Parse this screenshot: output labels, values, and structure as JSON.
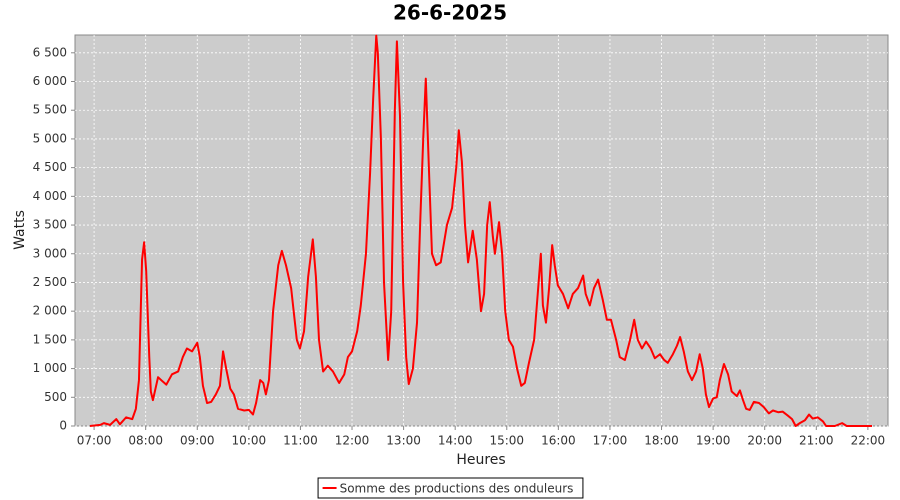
{
  "chart_data": {
    "type": "line",
    "title": "26-6-2025",
    "x_label": "Heures",
    "y_label": "Watts",
    "x": [
      6.92,
      7.12,
      7.19,
      7.31,
      7.43,
      7.5,
      7.62,
      7.74,
      7.81,
      7.87,
      7.93,
      7.97,
      8.01,
      8.07,
      8.1,
      8.14,
      8.24,
      8.3,
      8.4,
      8.51,
      8.63,
      8.72,
      8.8,
      8.9,
      9.0,
      9.05,
      9.11,
      9.19,
      9.27,
      9.36,
      9.44,
      9.5,
      9.56,
      9.64,
      9.71,
      9.79,
      9.91,
      10.0,
      10.08,
      10.14,
      10.22,
      10.28,
      10.33,
      10.39,
      10.47,
      10.57,
      10.64,
      10.72,
      10.82,
      10.93,
      10.99,
      11.07,
      11.15,
      11.24,
      11.3,
      11.36,
      11.44,
      11.53,
      11.63,
      11.75,
      11.85,
      11.92,
      12.0,
      12.1,
      12.17,
      12.27,
      12.35,
      12.41,
      12.47,
      12.5,
      12.56,
      12.62,
      12.7,
      12.76,
      12.83,
      12.87,
      12.93,
      12.99,
      13.05,
      13.1,
      13.18,
      13.26,
      13.32,
      13.38,
      13.43,
      13.49,
      13.55,
      13.63,
      13.72,
      13.84,
      13.94,
      14.02,
      14.07,
      14.13,
      14.19,
      14.25,
      14.34,
      14.42,
      14.5,
      14.56,
      14.62,
      14.67,
      14.73,
      14.77,
      14.85,
      14.91,
      14.97,
      15.04,
      15.12,
      15.2,
      15.28,
      15.35,
      15.43,
      15.53,
      15.6,
      15.66,
      15.7,
      15.76,
      15.82,
      15.88,
      15.93,
      15.99,
      16.09,
      16.19,
      16.28,
      16.38,
      16.48,
      16.53,
      16.61,
      16.69,
      16.77,
      16.86,
      16.94,
      17.02,
      17.12,
      17.19,
      17.29,
      17.39,
      17.47,
      17.54,
      17.62,
      17.7,
      17.79,
      17.87,
      17.97,
      18.05,
      18.12,
      18.22,
      18.3,
      18.36,
      18.43,
      18.51,
      18.59,
      18.67,
      18.74,
      18.8,
      18.86,
      18.92,
      19.0,
      19.07,
      19.13,
      19.21,
      19.29,
      19.36,
      19.46,
      19.52,
      19.58,
      19.64,
      19.71,
      19.79,
      19.89,
      19.98,
      20.08,
      20.16,
      20.26,
      20.35,
      20.45,
      20.53,
      20.6,
      20.68,
      20.78,
      20.86,
      20.93,
      21.03,
      21.13,
      21.19,
      21.36,
      21.5,
      21.59,
      21.84,
      22.08
    ],
    "series": [
      {
        "name": "Somme des productions des onduleurs",
        "color": "#ff0000",
        "values": [
          0,
          20,
          50,
          20,
          120,
          30,
          150,
          120,
          300,
          800,
          2900,
          3200,
          2700,
          1200,
          600,
          450,
          850,
          800,
          720,
          900,
          950,
          1200,
          1350,
          1300,
          1450,
          1200,
          700,
          400,
          420,
          550,
          700,
          1300,
          1000,
          650,
          550,
          300,
          270,
          280,
          200,
          400,
          800,
          750,
          550,
          800,
          2000,
          2800,
          3050,
          2800,
          2400,
          1500,
          1350,
          1650,
          2600,
          3250,
          2600,
          1500,
          950,
          1050,
          950,
          750,
          900,
          1200,
          1300,
          1650,
          2100,
          3000,
          4400,
          5700,
          6800,
          6500,
          5000,
          2500,
          1150,
          2000,
          5500,
          6700,
          5400,
          2500,
          1200,
          730,
          1000,
          1800,
          3500,
          5000,
          6050,
          4500,
          3000,
          2800,
          2850,
          3500,
          3800,
          4500,
          5150,
          4600,
          3500,
          2850,
          3400,
          2900,
          2000,
          2300,
          3500,
          3900,
          3300,
          3000,
          3550,
          3000,
          2000,
          1500,
          1380,
          1000,
          700,
          750,
          1100,
          1500,
          2300,
          3000,
          2100,
          1800,
          2400,
          3150,
          2800,
          2450,
          2300,
          2050,
          2300,
          2400,
          2620,
          2300,
          2100,
          2400,
          2550,
          2200,
          1850,
          1850,
          1500,
          1200,
          1150,
          1500,
          1850,
          1500,
          1350,
          1470,
          1350,
          1180,
          1250,
          1150,
          1100,
          1250,
          1400,
          1550,
          1300,
          950,
          800,
          950,
          1250,
          1000,
          550,
          330,
          480,
          500,
          800,
          1080,
          900,
          600,
          520,
          620,
          450,
          300,
          280,
          420,
          400,
          330,
          220,
          270,
          240,
          250,
          180,
          120,
          0,
          50,
          100,
          200,
          130,
          150,
          80,
          0,
          0,
          50,
          0,
          0,
          0
        ]
      }
    ],
    "xlim": [
      6.63,
      22.39
    ],
    "xticks": [
      {
        "value": 7,
        "label": "07:00"
      },
      {
        "value": 8,
        "label": "08:00"
      },
      {
        "value": 9,
        "label": "09:00"
      },
      {
        "value": 10,
        "label": "10:00"
      },
      {
        "value": 11,
        "label": "11:00"
      },
      {
        "value": 12,
        "label": "12:00"
      },
      {
        "value": 13,
        "label": "13:00"
      },
      {
        "value": 14,
        "label": "14:00"
      },
      {
        "value": 15,
        "label": "15:00"
      },
      {
        "value": 16,
        "label": "16:00"
      },
      {
        "value": 17,
        "label": "17:00"
      },
      {
        "value": 18,
        "label": "18:00"
      },
      {
        "value": 19,
        "label": "19:00"
      },
      {
        "value": 20,
        "label": "20:00"
      },
      {
        "value": 21,
        "label": "21:00"
      },
      {
        "value": 22,
        "label": "22:00"
      }
    ],
    "ylim": [
      0,
      6810
    ],
    "yticks": [
      0,
      500,
      {
        "value": 1000,
        "label": "1 000"
      },
      {
        "value": 1500,
        "label": "1 500"
      },
      {
        "value": 2000,
        "label": "2 000"
      },
      {
        "value": 2500,
        "label": "2 500"
      },
      {
        "value": 3000,
        "label": "3 000"
      },
      {
        "value": 3500,
        "label": "3 500"
      },
      {
        "value": 4000,
        "label": "4 000"
      },
      {
        "value": 4500,
        "label": "4 500"
      },
      {
        "value": 5000,
        "label": "5 000"
      },
      {
        "value": 5500,
        "label": "5 500"
      },
      {
        "value": 6000,
        "label": "6 000"
      },
      {
        "value": 6500,
        "label": "6 500"
      }
    ],
    "grid": true,
    "legend": "bottom"
  }
}
